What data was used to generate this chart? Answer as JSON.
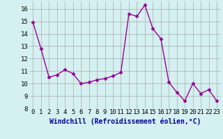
{
  "x": [
    0,
    1,
    2,
    3,
    4,
    5,
    6,
    7,
    8,
    9,
    10,
    11,
    12,
    13,
    14,
    15,
    16,
    17,
    18,
    19,
    20,
    21,
    22,
    23
  ],
  "y": [
    14.9,
    12.8,
    10.5,
    10.7,
    11.1,
    10.8,
    10.0,
    10.1,
    10.3,
    10.4,
    10.6,
    10.9,
    15.6,
    15.4,
    16.3,
    14.4,
    13.6,
    10.1,
    9.3,
    8.6,
    10.0,
    9.2,
    9.5,
    8.6
  ],
  "line_color": "#990099",
  "marker": "D",
  "marker_size": 2.5,
  "bg_color": "#d4f0f0",
  "grid_color": "#aaaaaa",
  "xlabel": "Windchill (Refroidissement éolien,°C)",
  "xlabel_color": "#000099",
  "xlabel_fontsize": 7,
  "ylim": [
    8,
    16.6
  ],
  "yticks": [
    8,
    9,
    10,
    11,
    12,
    13,
    14,
    15,
    16
  ],
  "xticks": [
    0,
    1,
    2,
    3,
    4,
    5,
    6,
    7,
    8,
    9,
    10,
    11,
    12,
    13,
    14,
    15,
    16,
    17,
    18,
    19,
    20,
    21,
    22,
    23
  ],
  "tick_fontsize": 6.5,
  "linewidth": 1.0
}
